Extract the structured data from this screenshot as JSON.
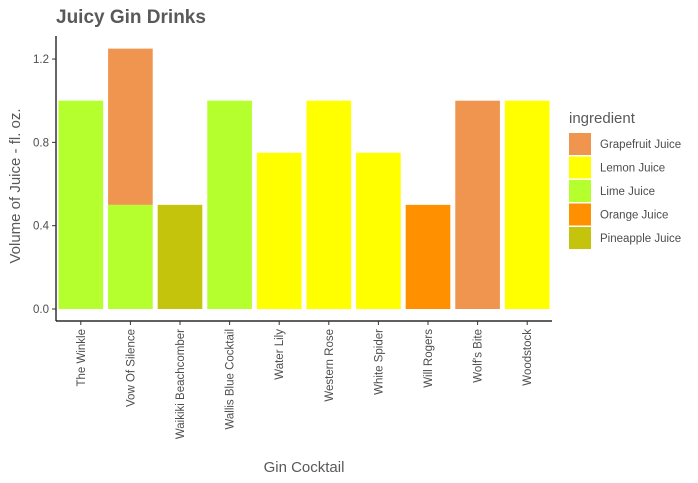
{
  "chart_data": {
    "type": "bar",
    "stacked": true,
    "title": "Juicy Gin Drinks",
    "xlabel": "Gin Cocktail",
    "ylabel": "Volume of Juice - fl. oz.",
    "ylim": [
      0,
      1.3
    ],
    "yticks": [
      "0.0",
      "0.4",
      "0.8",
      "1.2"
    ],
    "grid": false,
    "legend": {
      "title": "ingredient",
      "position": "right"
    },
    "categories": [
      "The Winkle",
      "Vow Of Silence",
      "Waikiki Beachcomber",
      "Wallis Blue Cocktail",
      "Water Lily",
      "Western Rose",
      "White Spider",
      "Will Rogers",
      "Wolf's Bite",
      "Woodstock"
    ],
    "series": [
      {
        "name": "Lime Juice",
        "color": "#b5ff2e",
        "values": [
          1,
          0.5,
          0,
          1,
          0,
          0,
          0,
          0,
          0,
          0
        ]
      },
      {
        "name": "Grapefruit Juice",
        "color": "#f09550",
        "values": [
          0,
          0.75,
          0,
          0,
          0,
          0,
          0,
          0,
          1,
          0
        ]
      },
      {
        "name": "Pineapple Juice",
        "color": "#c4c40c",
        "values": [
          0,
          0,
          0.5,
          0,
          0,
          0,
          0,
          0,
          0,
          0
        ]
      },
      {
        "name": "Lemon Juice",
        "color": "#ffff00",
        "values": [
          0,
          0,
          0,
          0,
          0.75,
          1,
          0.75,
          0,
          0,
          1
        ]
      },
      {
        "name": "Orange Juice",
        "color": "#ff9100",
        "values": [
          0,
          0,
          0,
          0,
          0,
          0,
          0,
          0.5,
          0,
          0
        ]
      }
    ],
    "legend_order": [
      "Grapefruit Juice",
      "Lemon Juice",
      "Lime Juice",
      "Orange Juice",
      "Pineapple Juice"
    ]
  }
}
